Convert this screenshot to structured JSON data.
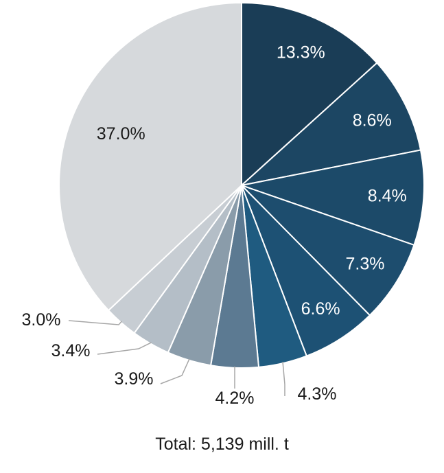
{
  "chart_data": {
    "type": "pie",
    "title": "",
    "start_angle_deg": 0,
    "direction": "clockwise",
    "slices": [
      {
        "value": 13.3,
        "label": "13.3%",
        "color": "#1a3d56",
        "label_pos": "inside"
      },
      {
        "value": 8.6,
        "label": "8.6%",
        "color": "#1c4663",
        "label_pos": "inside"
      },
      {
        "value": 8.4,
        "label": "8.4%",
        "color": "#1c4a69",
        "label_pos": "inside"
      },
      {
        "value": 7.3,
        "label": "7.3%",
        "color": "#1d4d6e",
        "label_pos": "inside"
      },
      {
        "value": 6.6,
        "label": "6.6%",
        "color": "#1d5174",
        "label_pos": "inside"
      },
      {
        "value": 4.3,
        "label": "4.3%",
        "color": "#1f5b80",
        "label_pos": "outside"
      },
      {
        "value": 4.2,
        "label": "4.2%",
        "color": "#5c7a92",
        "label_pos": "outside"
      },
      {
        "value": 3.9,
        "label": "3.9%",
        "color": "#8a9caa",
        "label_pos": "outside"
      },
      {
        "value": 3.4,
        "label": "3.4%",
        "color": "#b4bec7",
        "label_pos": "outside"
      },
      {
        "value": 3.0,
        "label": "3.0%",
        "color": "#c7cdd3",
        "label_pos": "outside"
      },
      {
        "value": 37.0,
        "label": "37.0%",
        "color": "#d6d9dc",
        "label_pos": "inside"
      }
    ],
    "total_label": "Total: 5,139 mill. t"
  }
}
